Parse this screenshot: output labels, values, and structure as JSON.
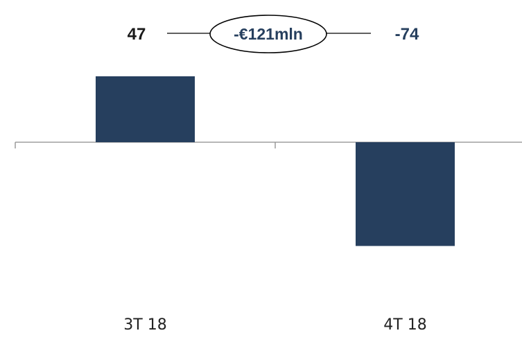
{
  "chart_data": {
    "type": "bar",
    "title": "",
    "xlabel": "",
    "ylabel": "",
    "categories": [
      "3T 18",
      "4T 18"
    ],
    "values": [
      47,
      -74
    ],
    "value_labels": [
      "47",
      "-74"
    ],
    "ylim": [
      -75,
      47
    ],
    "grid": false,
    "annotation": {
      "text": "-€121mln",
      "shape": "ellipse",
      "between": [
        "3T 18",
        "4T 18"
      ]
    }
  },
  "colors": {
    "bar": "#263f5e",
    "axis": "#8c8c8c",
    "value_label_positive": "#1a1a1a",
    "value_label_negative": "#263f5e",
    "annotation_text": "#263f5e",
    "connector": "#000000"
  }
}
